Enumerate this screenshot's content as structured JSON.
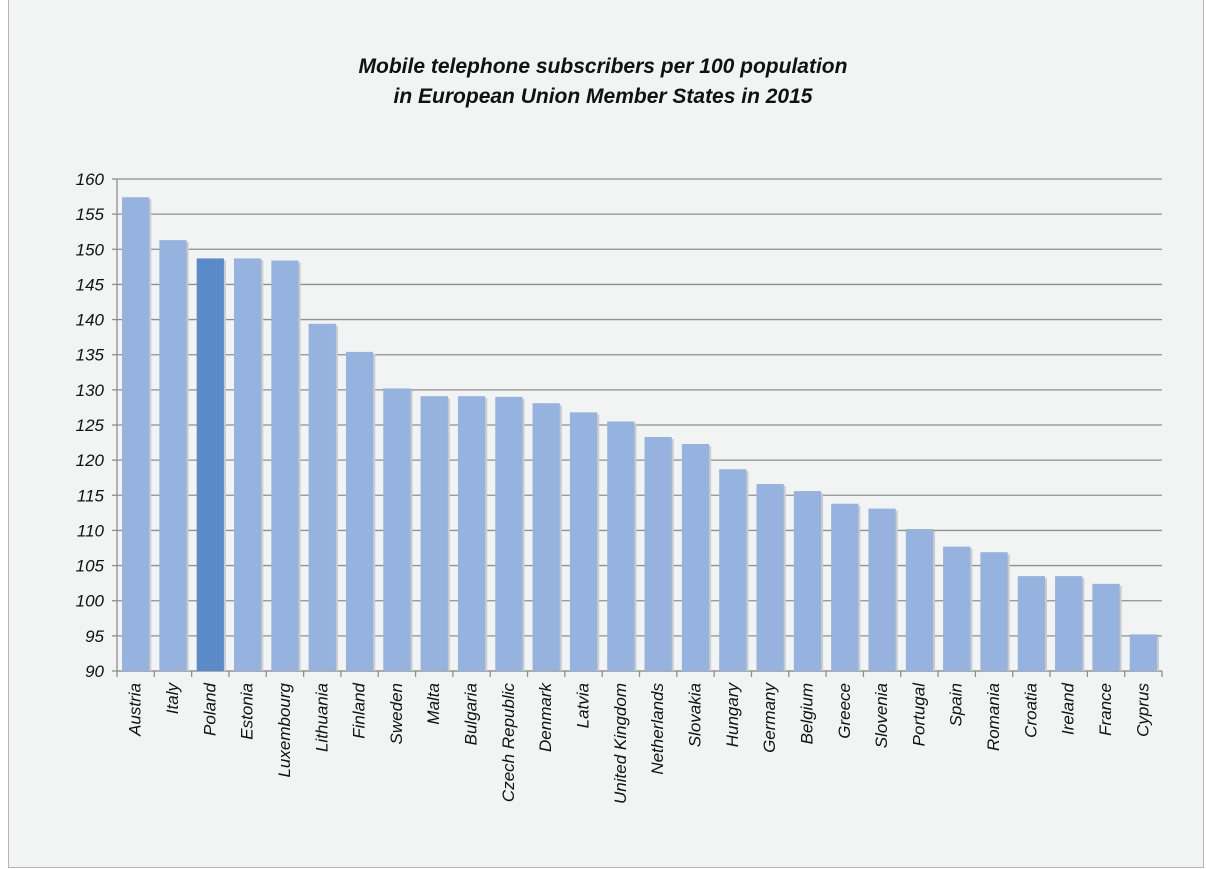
{
  "chart_data": {
    "type": "bar",
    "title_line1": "Mobile telephone subscribers per 100 population",
    "title_line2": "in European Union Member States in 2015",
    "xlabel": "",
    "ylabel": "",
    "ylim": [
      90,
      160
    ],
    "ytick_step": 5,
    "grid": true,
    "categories": [
      "Austria",
      "Italy",
      "Poland",
      "Estonia",
      "Luxembourg",
      "Lithuania",
      "Finland",
      "Sweden",
      "Malta",
      "Bulgaria",
      "Czech Republic",
      "Denmark",
      "Latvia",
      "United Kingdom",
      "Netherlands",
      "Slovakia",
      "Hungary",
      "Germany",
      "Belgium",
      "Greece",
      "Slovenia",
      "Portugal",
      "Spain",
      "Romania",
      "Croatia",
      "Ireland",
      "France",
      "Cyprus"
    ],
    "values": [
      157.4,
      151.3,
      148.7,
      148.7,
      148.4,
      139.4,
      135.4,
      130.2,
      129.1,
      129.1,
      129.0,
      128.1,
      126.8,
      125.5,
      123.3,
      122.3,
      118.7,
      116.6,
      115.6,
      113.8,
      113.1,
      110.2,
      107.7,
      106.9,
      103.5,
      103.5,
      102.4,
      95.2
    ],
    "highlight": "Poland",
    "bar_color": "#95b3de",
    "highlight_color": "#5b8ac8"
  }
}
